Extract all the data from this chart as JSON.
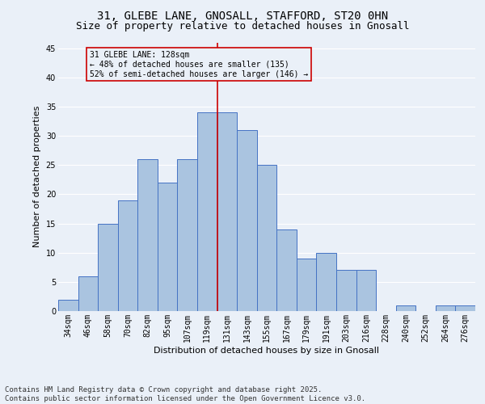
{
  "title1": "31, GLEBE LANE, GNOSALL, STAFFORD, ST20 0HN",
  "title2": "Size of property relative to detached houses in Gnosall",
  "xlabel": "Distribution of detached houses by size in Gnosall",
  "ylabel": "Number of detached properties",
  "categories": [
    "34sqm",
    "46sqm",
    "58sqm",
    "70sqm",
    "82sqm",
    "95sqm",
    "107sqm",
    "119sqm",
    "131sqm",
    "143sqm",
    "155sqm",
    "167sqm",
    "179sqm",
    "191sqm",
    "203sqm",
    "216sqm",
    "228sqm",
    "240sqm",
    "252sqm",
    "264sqm",
    "276sqm"
  ],
  "values": [
    2,
    6,
    15,
    19,
    26,
    22,
    26,
    34,
    34,
    31,
    25,
    14,
    9,
    10,
    7,
    7,
    0,
    1,
    0,
    1,
    1
  ],
  "bar_color": "#aac4e0",
  "bar_edge_color": "#4472c4",
  "bg_color": "#eaf0f8",
  "grid_color": "#ffffff",
  "vline_color": "#cc0000",
  "annotation_text": "31 GLEBE LANE: 128sqm\n← 48% of detached houses are smaller (135)\n52% of semi-detached houses are larger (146) →",
  "annotation_box_color": "#cc0000",
  "ylim": [
    0,
    46
  ],
  "yticks": [
    0,
    5,
    10,
    15,
    20,
    25,
    30,
    35,
    40,
    45
  ],
  "footer_text": "Contains HM Land Registry data © Crown copyright and database right 2025.\nContains public sector information licensed under the Open Government Licence v3.0.",
  "title_fontsize": 10,
  "subtitle_fontsize": 9,
  "axis_label_fontsize": 8,
  "tick_fontsize": 7,
  "footer_fontsize": 6.5
}
